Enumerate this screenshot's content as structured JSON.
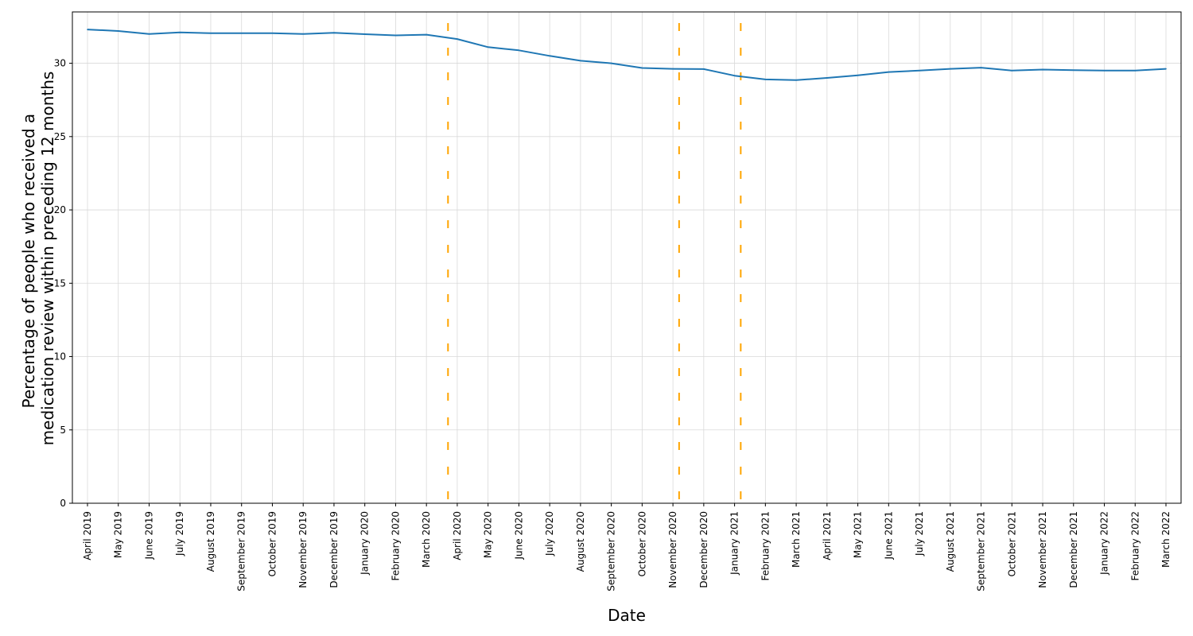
{
  "chart_data": {
    "type": "line",
    "title": "",
    "xlabel": "Date",
    "ylabel_lines": [
      "Percentage of people who received a",
      "medication review within preceding 12 months"
    ],
    "ylim": [
      0,
      33.5
    ],
    "yticks": [
      0,
      5,
      10,
      15,
      20,
      25,
      30
    ],
    "grid": true,
    "categories": [
      "April 2019",
      "May 2019",
      "June 2019",
      "July 2019",
      "August 2019",
      "September 2019",
      "October 2019",
      "November 2019",
      "December 2019",
      "January 2020",
      "February 2020",
      "March 2020",
      "April 2020",
      "May 2020",
      "June 2020",
      "July 2020",
      "August 2020",
      "September 2020",
      "October 2020",
      "November 2020",
      "December 2020",
      "January 2021",
      "February 2021",
      "March 2021",
      "April 2021",
      "May 2021",
      "June 2021",
      "July 2021",
      "August 2021",
      "September 2021",
      "October 2021",
      "November 2021",
      "December 2021",
      "January 2022",
      "February 2022",
      "March 2022"
    ],
    "series": [
      {
        "values": [
          32.3,
          32.2,
          32.0,
          32.1,
          32.05,
          32.05,
          32.05,
          32.0,
          32.08,
          31.98,
          31.9,
          31.95,
          31.65,
          31.1,
          30.88,
          30.5,
          30.17,
          30.0,
          29.68,
          29.62,
          29.6,
          29.15,
          28.9,
          28.85,
          29.0,
          29.18,
          29.4,
          29.5,
          29.62,
          29.7,
          29.5,
          29.57,
          29.53,
          29.5,
          29.5,
          29.62
        ]
      }
    ],
    "event_lines": [
      {
        "position_months_after_start": 11.7
      },
      {
        "position_months_after_start": 19.2
      },
      {
        "position_months_after_start": 21.2
      }
    ],
    "colors": {
      "line": "#1f77b4",
      "event_line": "#ffa500",
      "grid": "#d9d9d9",
      "axis": "#000000"
    }
  }
}
